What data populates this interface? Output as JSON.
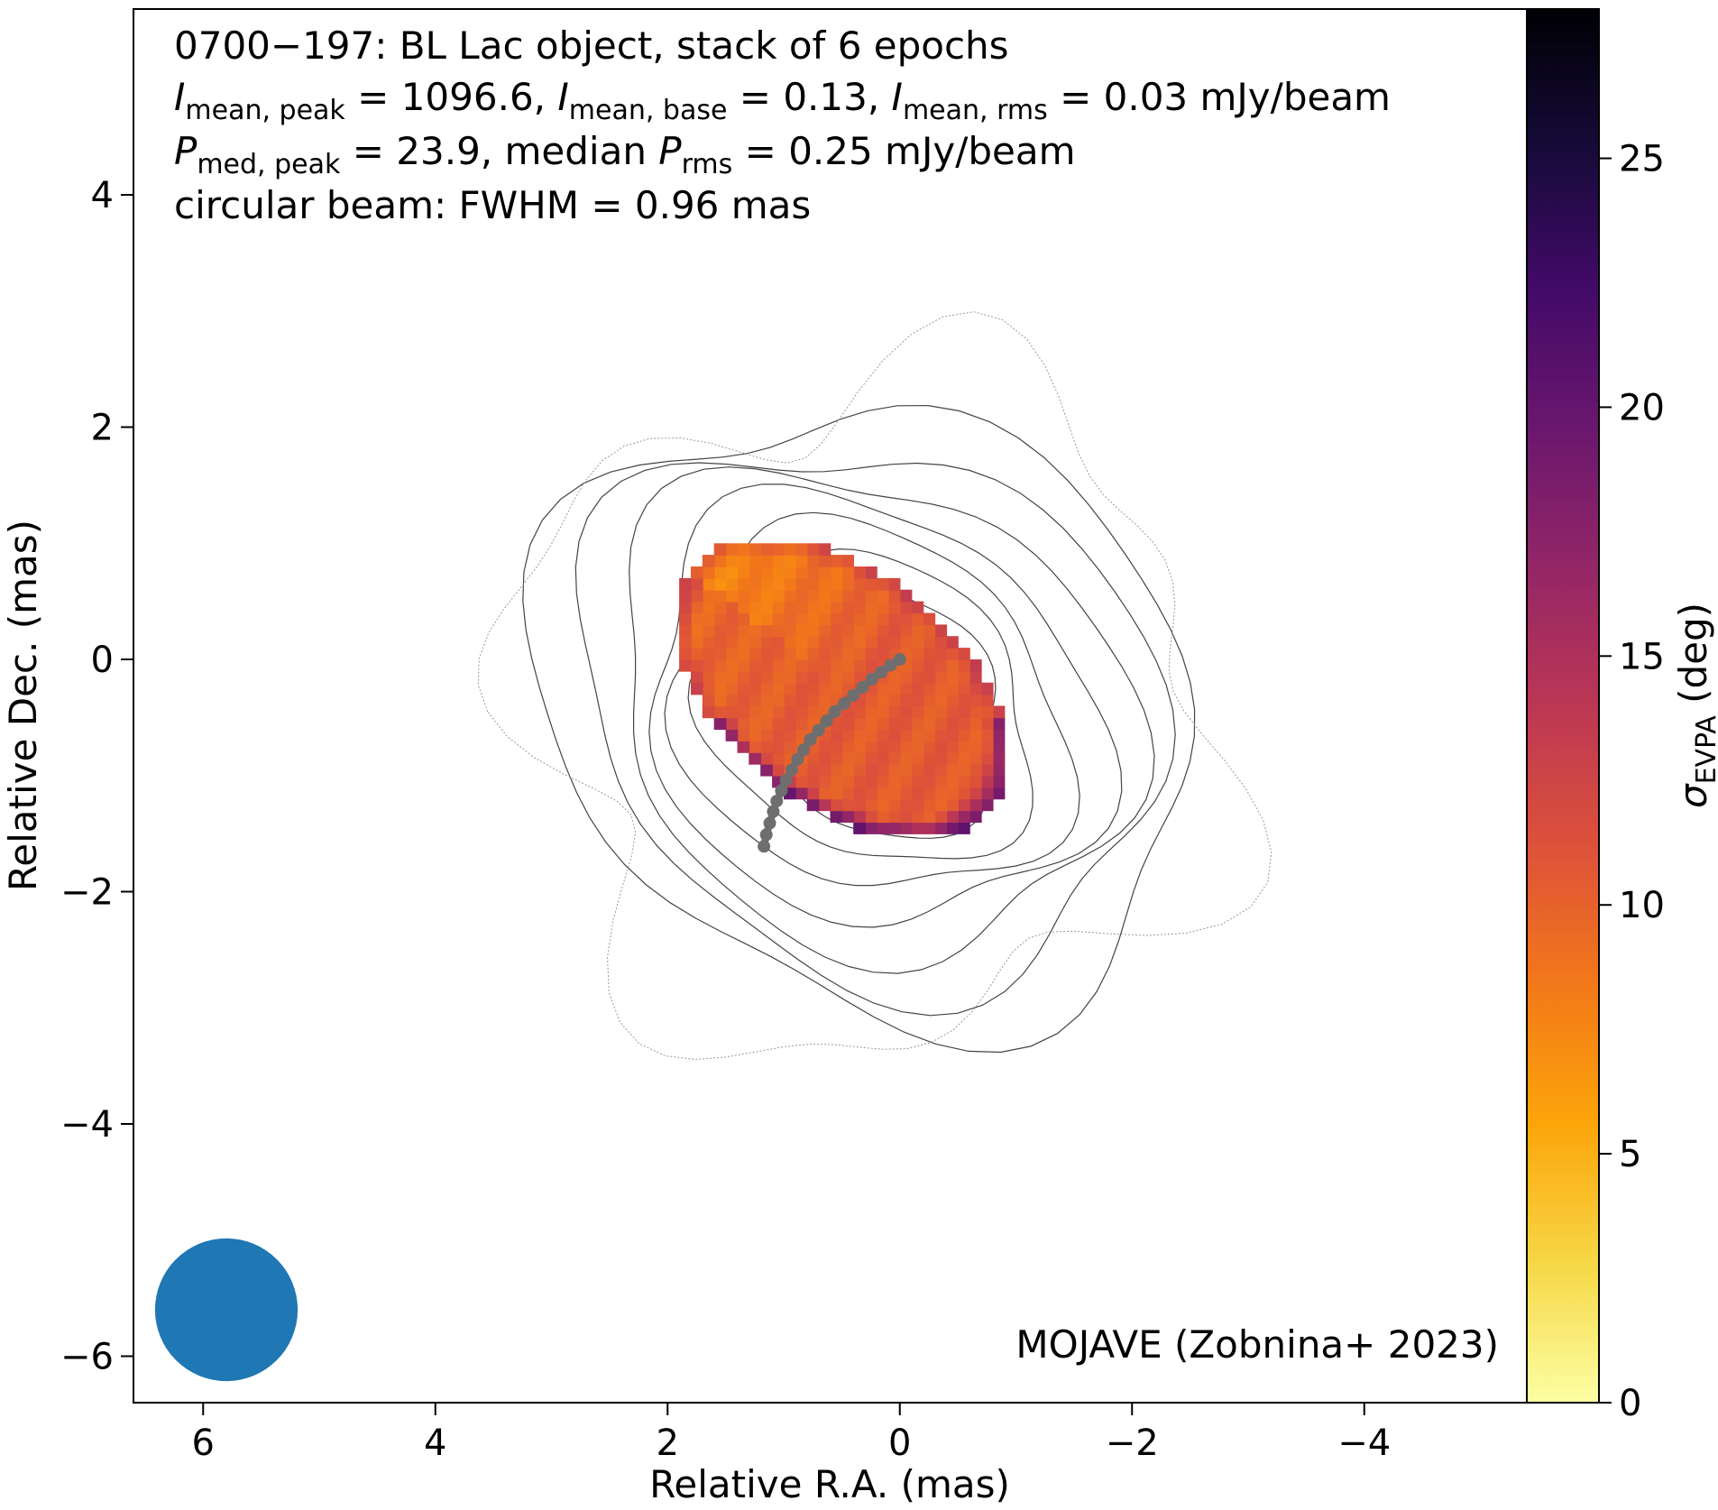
{
  "chart_data": {
    "type": "heatmap",
    "title": "0700−197: BL Lac object, stack of 6 epochs",
    "annotation_lines": [
      {
        "parts": [
          {
            "t": "I",
            "italic": true
          },
          {
            "t": "mean, peak",
            "sub": true
          },
          {
            "t": " = 1096.6, "
          },
          {
            "t": "I",
            "italic": true
          },
          {
            "t": "mean, base",
            "sub": true
          },
          {
            "t": " = 0.13, "
          },
          {
            "t": "I",
            "italic": true
          },
          {
            "t": "mean, rms",
            "sub": true
          },
          {
            "t": " = 0.03 mJy/beam"
          }
        ]
      },
      {
        "parts": [
          {
            "t": "P",
            "italic": true
          },
          {
            "t": "med, peak",
            "sub": true
          },
          {
            "t": " = 23.9, median "
          },
          {
            "t": "P",
            "italic": true
          },
          {
            "t": "rms",
            "sub": true
          },
          {
            "t": " = 0.25 mJy/beam"
          }
        ]
      },
      {
        "parts": [
          {
            "t": "circular beam: FWHM = 0.96 mas"
          }
        ]
      }
    ],
    "credit": "MOJAVE (Zobnina+ 2023)",
    "xlabel": "Relative R.A. (mas)",
    "ylabel": "Relative Dec. (mas)",
    "xlim": [
      6.6,
      -5.4
    ],
    "ylim": [
      -6.4,
      5.6
    ],
    "xticks": [
      6,
      4,
      2,
      0,
      -2,
      -4
    ],
    "xtick_labels": [
      "6",
      "4",
      "2",
      "0",
      "−2",
      "−4"
    ],
    "yticks": [
      4,
      2,
      0,
      -2,
      -4,
      -6
    ],
    "ytick_labels": [
      "4",
      "2",
      "0",
      "−2",
      "−4",
      "−6"
    ],
    "colorbar": {
      "label_symbol": "σ",
      "label_sub": "EVPA",
      "label_rest": " (deg)",
      "range": [
        0,
        28
      ],
      "ticks": [
        0,
        5,
        10,
        15,
        20,
        25
      ],
      "colormap": "inferno_r"
    },
    "beam": {
      "x": 5.8,
      "y": -5.6,
      "fwhm_mas": 0.96,
      "color": "#1f77b4"
    },
    "ridge_line": {
      "color": "#6e6e6e",
      "points": [
        [
          0.0,
          0.0
        ],
        [
          0.08,
          -0.05
        ],
        [
          0.16,
          -0.11
        ],
        [
          0.24,
          -0.17
        ],
        [
          0.32,
          -0.24
        ],
        [
          0.4,
          -0.31
        ],
        [
          0.48,
          -0.38
        ],
        [
          0.56,
          -0.45
        ],
        [
          0.63,
          -0.53
        ],
        [
          0.7,
          -0.61
        ],
        [
          0.77,
          -0.69
        ],
        [
          0.83,
          -0.78
        ],
        [
          0.88,
          -0.86
        ],
        [
          0.93,
          -0.95
        ],
        [
          0.98,
          -1.04
        ],
        [
          1.02,
          -1.13
        ],
        [
          1.06,
          -1.22
        ],
        [
          1.09,
          -1.31
        ],
        [
          1.12,
          -1.41
        ],
        [
          1.15,
          -1.51
        ],
        [
          1.17,
          -1.61
        ]
      ]
    },
    "polarization_region": {
      "center": [
        0.45,
        -0.3
      ],
      "semi_major": 1.65,
      "semi_minor": 1.0,
      "angle_deg": 38,
      "typical_sigma_deg": 10.5
    },
    "contours": {
      "center": [
        0.25,
        -0.45
      ],
      "levels_relative_sizes": [
        0.35,
        0.55,
        0.8,
        1.05,
        1.3,
        1.55,
        1.8,
        2.05,
        2.3,
        2.6
      ]
    }
  }
}
